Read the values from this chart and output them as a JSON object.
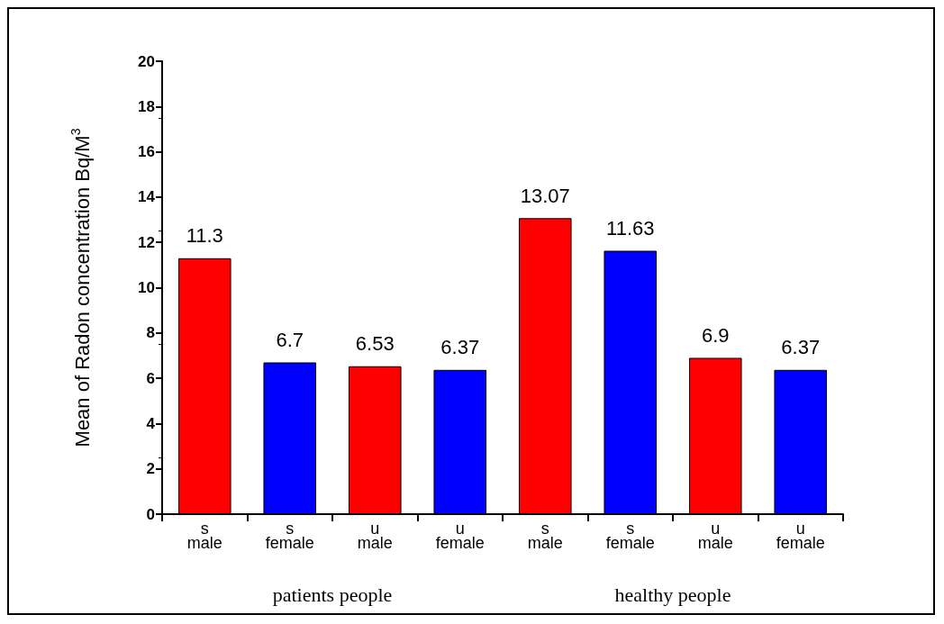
{
  "chart_data": {
    "type": "bar",
    "ylabel": "Mean of Radon concentration Bq/M$^{3}$",
    "categories": [
      "s\nmale",
      "s\nfemale",
      "u\nmale",
      "u\nfemale",
      "s\nmale",
      "s\nfemale",
      "u\nmale",
      "u\nfemale"
    ],
    "values": [
      11.3,
      6.7,
      6.53,
      6.37,
      13.07,
      11.63,
      6.9,
      6.37
    ],
    "colors": [
      "#ff0000",
      "#0000ff",
      "#ff0000",
      "#0000ff",
      "#ff0000",
      "#0000ff",
      "#ff0000",
      "#0000ff"
    ],
    "ylim": [
      0,
      20
    ],
    "yticks": [
      0,
      2,
      4,
      6,
      8,
      10,
      12,
      14,
      16,
      18,
      20
    ],
    "data_labels": true,
    "grid": false,
    "annotations": [
      "patients people",
      "healthy people"
    ]
  }
}
